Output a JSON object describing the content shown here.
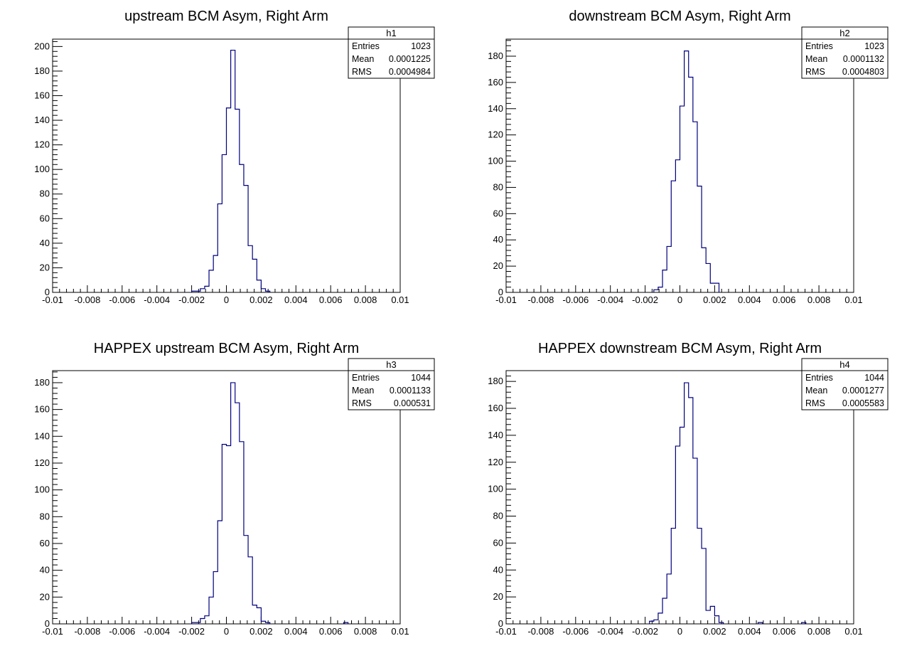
{
  "chart_data": [
    {
      "type": "bar",
      "name": "h1",
      "title": "upstream BCM Asym, Right Arm",
      "xlim": [
        -0.01,
        0.01
      ],
      "ylim": [
        0,
        206
      ],
      "x_ticks": [
        "-0.01",
        "-0.008",
        "-0.006",
        "-0.004",
        "-0.002",
        "0",
        "0.002",
        "0.004",
        "0.006",
        "0.008",
        "0.01"
      ],
      "y_ticks": [
        "0",
        "20",
        "40",
        "60",
        "80",
        "100",
        "120",
        "140",
        "160",
        "180",
        "200"
      ],
      "bin_width": 0.00025,
      "bins": [
        {
          "x": -0.002,
          "y": 1
        },
        {
          "x": -0.00175,
          "y": 1
        },
        {
          "x": -0.0015,
          "y": 3
        },
        {
          "x": -0.00125,
          "y": 5
        },
        {
          "x": -0.001,
          "y": 18
        },
        {
          "x": -0.00075,
          "y": 30
        },
        {
          "x": -0.0005,
          "y": 72
        },
        {
          "x": -0.00025,
          "y": 112
        },
        {
          "x": 0,
          "y": 150
        },
        {
          "x": 0.00025,
          "y": 197
        },
        {
          "x": 0.0005,
          "y": 149
        },
        {
          "x": 0.00075,
          "y": 104
        },
        {
          "x": 0.001,
          "y": 87
        },
        {
          "x": 0.00125,
          "y": 38
        },
        {
          "x": 0.0015,
          "y": 27
        },
        {
          "x": 0.00175,
          "y": 10
        },
        {
          "x": 0.002,
          "y": 3
        },
        {
          "x": 0.00225,
          "y": 1
        }
      ],
      "stats": {
        "title": "h1",
        "rows": [
          [
            "Entries",
            "1023"
          ],
          [
            "Mean",
            "0.0001225"
          ],
          [
            "RMS",
            "0.0004984"
          ]
        ]
      }
    },
    {
      "type": "bar",
      "name": "h2",
      "title": "downstream BCM Asym, Right Arm",
      "xlim": [
        -0.01,
        0.01
      ],
      "ylim": [
        0,
        193
      ],
      "x_ticks": [
        "-0.01",
        "-0.008",
        "-0.006",
        "-0.004",
        "-0.002",
        "0",
        "0.002",
        "0.004",
        "0.006",
        "0.008",
        "0.01"
      ],
      "y_ticks": [
        "0",
        "20",
        "40",
        "60",
        "80",
        "100",
        "120",
        "140",
        "160",
        "180"
      ],
      "bin_width": 0.00025,
      "bins": [
        {
          "x": -0.0015,
          "y": 2
        },
        {
          "x": -0.00125,
          "y": 4
        },
        {
          "x": -0.001,
          "y": 17
        },
        {
          "x": -0.00075,
          "y": 35
        },
        {
          "x": -0.0005,
          "y": 85
        },
        {
          "x": -0.00025,
          "y": 101
        },
        {
          "x": 0,
          "y": 142
        },
        {
          "x": 0.00025,
          "y": 184
        },
        {
          "x": 0.0005,
          "y": 164
        },
        {
          "x": 0.00075,
          "y": 130
        },
        {
          "x": 0.001,
          "y": 81
        },
        {
          "x": 0.00125,
          "y": 34
        },
        {
          "x": 0.0015,
          "y": 22
        },
        {
          "x": 0.00175,
          "y": 7
        },
        {
          "x": 0.002,
          "y": 7
        }
      ],
      "stats": {
        "title": "h2",
        "rows": [
          [
            "Entries",
            "1023"
          ],
          [
            "Mean",
            "0.0001132"
          ],
          [
            "RMS",
            "0.0004803"
          ]
        ]
      }
    },
    {
      "type": "bar",
      "name": "h3",
      "title": "HAPPEX upstream BCM Asym, Right Arm",
      "xlim": [
        -0.01,
        0.01
      ],
      "ylim": [
        0,
        189
      ],
      "x_ticks": [
        "-0.01",
        "-0.008",
        "-0.006",
        "-0.004",
        "-0.002",
        "0",
        "0.002",
        "0.004",
        "0.006",
        "0.008",
        "0.01"
      ],
      "y_ticks": [
        "0",
        "20",
        "40",
        "60",
        "80",
        "100",
        "120",
        "140",
        "160",
        "180"
      ],
      "bin_width": 0.00025,
      "bins": [
        {
          "x": -0.002,
          "y": 1
        },
        {
          "x": -0.00175,
          "y": 1
        },
        {
          "x": -0.0015,
          "y": 4
        },
        {
          "x": -0.00125,
          "y": 6
        },
        {
          "x": -0.001,
          "y": 20
        },
        {
          "x": -0.00075,
          "y": 39
        },
        {
          "x": -0.0005,
          "y": 77
        },
        {
          "x": -0.00025,
          "y": 134
        },
        {
          "x": 0,
          "y": 133
        },
        {
          "x": 0.00025,
          "y": 180
        },
        {
          "x": 0.0005,
          "y": 165
        },
        {
          "x": 0.00075,
          "y": 136
        },
        {
          "x": 0.001,
          "y": 66
        },
        {
          "x": 0.00125,
          "y": 50
        },
        {
          "x": 0.0015,
          "y": 14
        },
        {
          "x": 0.00175,
          "y": 12
        },
        {
          "x": 0.002,
          "y": 2
        },
        {
          "x": 0.00225,
          "y": 1
        },
        {
          "x": 0.00675,
          "y": 1
        }
      ],
      "stats": {
        "title": "h3",
        "rows": [
          [
            "Entries",
            "1044"
          ],
          [
            "Mean",
            "0.0001133"
          ],
          [
            "RMS",
            "0.000531"
          ]
        ]
      }
    },
    {
      "type": "bar",
      "name": "h4",
      "title": "HAPPEX downstream BCM Asym, Right Arm",
      "xlim": [
        -0.01,
        0.01
      ],
      "ylim": [
        0,
        188
      ],
      "x_ticks": [
        "-0.01",
        "-0.008",
        "-0.006",
        "-0.004",
        "-0.002",
        "0",
        "0.002",
        "0.004",
        "0.006",
        "0.008",
        "0.01"
      ],
      "y_ticks": [
        "0",
        "20",
        "40",
        "60",
        "80",
        "100",
        "120",
        "140",
        "160",
        "180"
      ],
      "bin_width": 0.00025,
      "bins": [
        {
          "x": -0.00175,
          "y": 2
        },
        {
          "x": -0.0015,
          "y": 3
        },
        {
          "x": -0.00125,
          "y": 8
        },
        {
          "x": -0.001,
          "y": 19
        },
        {
          "x": -0.00075,
          "y": 37
        },
        {
          "x": -0.0005,
          "y": 71
        },
        {
          "x": -0.00025,
          "y": 132
        },
        {
          "x": 0,
          "y": 146
        },
        {
          "x": 0.00025,
          "y": 179
        },
        {
          "x": 0.0005,
          "y": 168
        },
        {
          "x": 0.00075,
          "y": 123
        },
        {
          "x": 0.001,
          "y": 71
        },
        {
          "x": 0.00125,
          "y": 56
        },
        {
          "x": 0.0015,
          "y": 10
        },
        {
          "x": 0.00175,
          "y": 13
        },
        {
          "x": 0.002,
          "y": 6
        },
        {
          "x": 0.00225,
          "y": 1
        },
        {
          "x": 0.0045,
          "y": 1
        },
        {
          "x": 0.007,
          "y": 1
        }
      ],
      "stats": {
        "title": "h4",
        "rows": [
          [
            "Entries",
            "1044"
          ],
          [
            "Mean",
            "0.0001277"
          ],
          [
            "RMS",
            "0.0005583"
          ]
        ]
      }
    }
  ],
  "colors": {
    "histogram_line": "#00007f",
    "axis": "#000000",
    "background": "#ffffff"
  }
}
